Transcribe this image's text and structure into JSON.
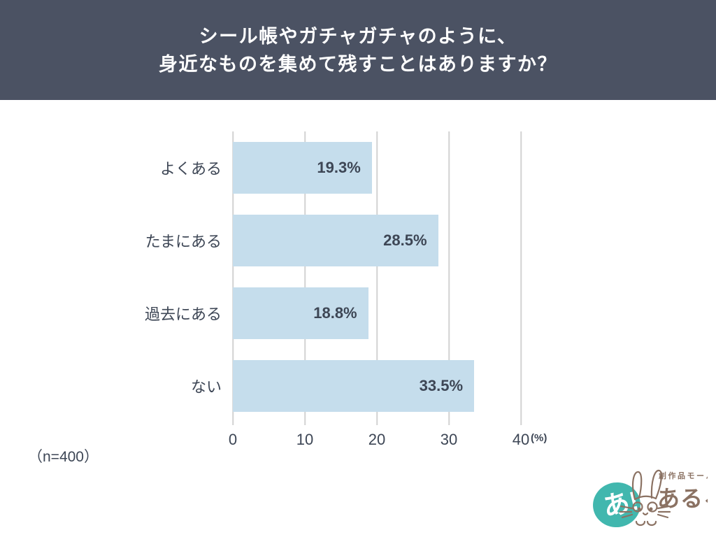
{
  "header": {
    "title_line1": "シール帳やガチャガチャのように、",
    "title_line2": "身近なものを集めて残すことはありますか？",
    "bg_color": "#4b5263",
    "text_color": "#ffffff"
  },
  "chart_data": {
    "type": "bar",
    "orientation": "horizontal",
    "title": "シール帳やガチャガチャのように、身近なものを集めて残すことはありますか？",
    "categories": [
      "よくある",
      "たまにある",
      "過去にある",
      "ない"
    ],
    "values": [
      19.3,
      28.5,
      18.8,
      33.5
    ],
    "value_labels": [
      "19.3%",
      "28.5%",
      "18.8%",
      "33.5%"
    ],
    "xlim": [
      0,
      40
    ],
    "xticks": [
      0,
      10,
      20,
      30,
      40
    ],
    "x_unit": "(%)",
    "grid": true,
    "legend_position": "none",
    "bar_color": "#c5ddec",
    "text_color": "#3d4655",
    "grid_color": "#d2d2d2"
  },
  "footnote": {
    "sample_size": "（n=400）"
  },
  "logo": {
    "badge_text": "あ!",
    "tagline": "創作品モール",
    "brand": "あるる",
    "teal": "#41b7ae",
    "brown": "#8b7263"
  }
}
